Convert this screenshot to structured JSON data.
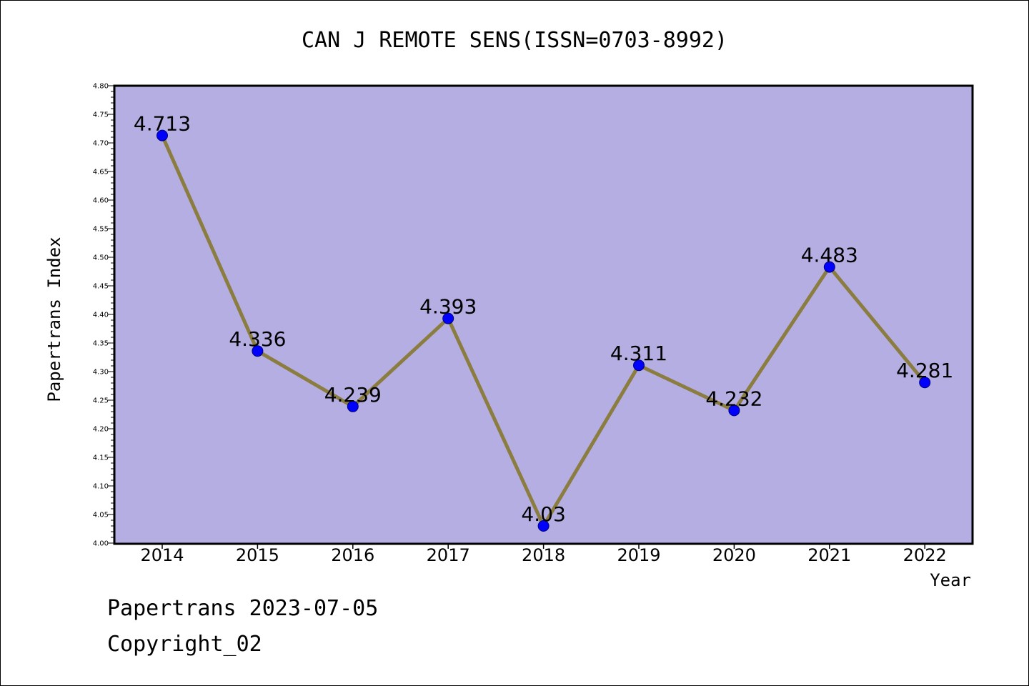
{
  "chart_data": {
    "type": "line",
    "title": "CAN J REMOTE SENS(ISSN=0703-8992)",
    "xlabel": "Year",
    "ylabel": "Papertrans Index",
    "x": [
      "2014",
      "2015",
      "2016",
      "2017",
      "2018",
      "2019",
      "2020",
      "2021",
      "2022"
    ],
    "values": [
      4.713,
      4.336,
      4.239,
      4.393,
      4.03,
      4.311,
      4.232,
      4.483,
      4.281
    ],
    "data_labels": [
      "4.713",
      "4.336",
      "4.239",
      "4.393",
      "4.03",
      "4.311",
      "4.232",
      "4.483",
      "4.281"
    ],
    "ylim": [
      4.0,
      4.8
    ],
    "yticks": [
      "4.00",
      "4.05",
      "4.10",
      "4.15",
      "4.20",
      "4.25",
      "4.30",
      "4.35",
      "4.40",
      "4.45",
      "4.50",
      "4.55",
      "4.60",
      "4.65",
      "4.70",
      "4.75",
      "4.80"
    ],
    "grid": false,
    "legend": "none"
  },
  "footer": {
    "line1": "Papertrans 2023-07-05",
    "line2": "Copyright_02"
  },
  "colors": {
    "plot_background": "#b4aee2",
    "line": "#8b7d3f",
    "marker": "#0000ff"
  }
}
